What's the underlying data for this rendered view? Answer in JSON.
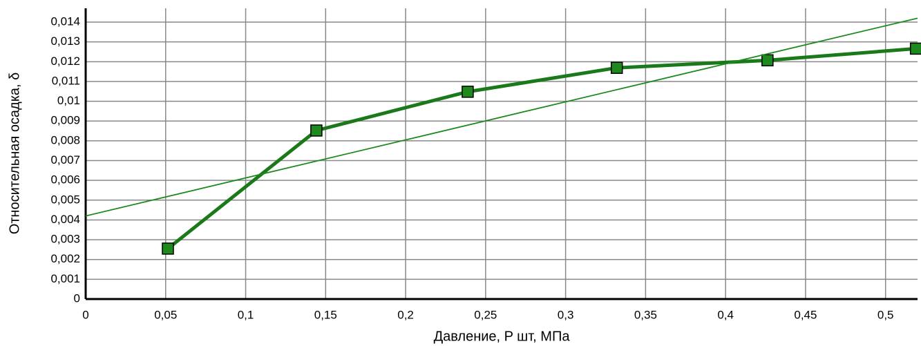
{
  "chart_data": {
    "type": "line",
    "x_label": "Давление, P шт, МПа",
    "y_label": "Относительная осадка, δ",
    "xlim": [
      0,
      0.52
    ],
    "ylim": [
      0,
      0.0147
    ],
    "xticks": [
      0,
      {
        "value": 0.05,
        "label": "0,05"
      },
      {
        "value": 0.1,
        "label": "0,1"
      },
      {
        "value": 0.15,
        "label": "0,15"
      },
      {
        "value": 0.2,
        "label": "0,2"
      },
      {
        "value": 0.25,
        "label": "0,25"
      },
      {
        "value": 0.3,
        "label": "0,3"
      },
      {
        "value": 0.35,
        "label": "0,35"
      },
      {
        "value": 0.4,
        "label": "0,4"
      },
      {
        "value": 0.45,
        "label": "0,45"
      },
      {
        "value": 0.5,
        "label": "0,5"
      }
    ],
    "yticks": [
      0,
      {
        "value": 0.001,
        "label": "0,001"
      },
      {
        "value": 0.002,
        "label": "0,002"
      },
      {
        "value": 0.003,
        "label": "0,003"
      },
      {
        "value": 0.004,
        "label": "0,004"
      },
      {
        "value": 0.005,
        "label": "0,005"
      },
      {
        "value": 0.006,
        "label": "0,006"
      },
      {
        "value": 0.007,
        "label": "0,007"
      },
      {
        "value": 0.008,
        "label": "0,008"
      },
      {
        "value": 0.009,
        "label": "0,009"
      },
      {
        "value": 0.01,
        "label": "0,01"
      },
      {
        "value": 0.011,
        "label": "0,011"
      },
      {
        "value": 0.012,
        "label": "0,012"
      },
      {
        "value": 0.013,
        "label": "0,013"
      },
      {
        "value": 0.014,
        "label": "0,014"
      }
    ],
    "grid": true,
    "series": [
      {
        "color": "#1a7a1a",
        "markers": true,
        "x": [
          0.0514,
          0.1442,
          0.2388,
          0.332,
          0.4262,
          0.519
        ],
        "values": [
          0.00255,
          0.00852,
          0.01048,
          0.01169,
          0.01207,
          0.01266
        ]
      },
      {
        "color": "#1a8a1a",
        "markers": false,
        "x": [
          0,
          0.52
        ],
        "values": [
          0.0042,
          0.0142
        ]
      }
    ]
  }
}
